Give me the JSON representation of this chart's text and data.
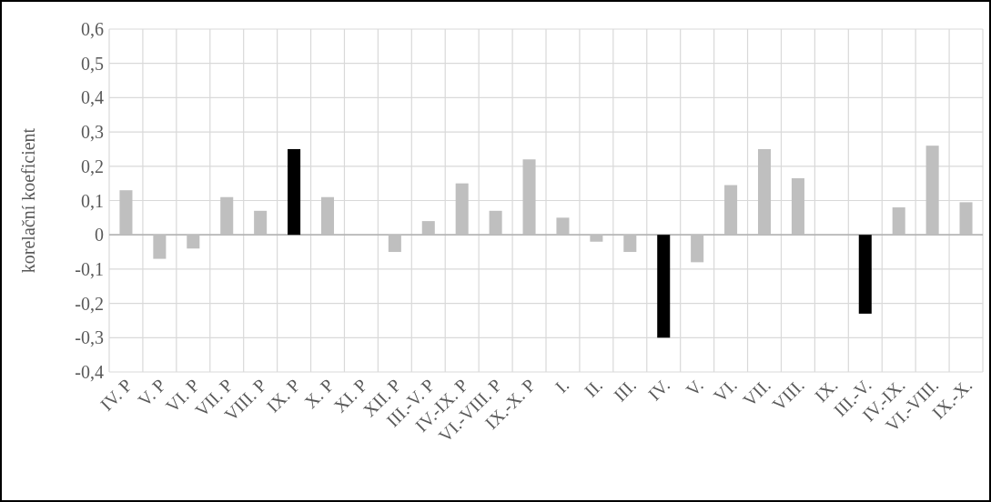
{
  "chart_data": {
    "type": "bar",
    "ylabel": "korelační koeficient",
    "categories": [
      "IV. P",
      "V. P",
      "VI. P",
      "VII. P",
      "VIII. P",
      "IX. P",
      "X. P",
      "XI. P",
      "XII. P",
      "III.-V. P",
      "IV.-IX. P",
      "VI.-VIII. P",
      "IX.-X. P",
      "I.",
      "II.",
      "III.",
      "IV.",
      "V.",
      "VI.",
      "VII.",
      "VIII.",
      "IX.",
      "III.-V.",
      "IV.-IX.",
      "VI.-VIII.",
      "IX.-X."
    ],
    "values": [
      0.13,
      -0.07,
      -0.04,
      0.11,
      0.07,
      0.25,
      0.11,
      0,
      -0.05,
      0.04,
      0.15,
      0.07,
      0.22,
      0.05,
      -0.02,
      -0.05,
      -0.3,
      -0.08,
      0.145,
      0.25,
      0.165,
      0,
      -0.23,
      0.08,
      0.26,
      0.095
    ],
    "colors": [
      "#bfbfbf",
      "#bfbfbf",
      "#bfbfbf",
      "#bfbfbf",
      "#bfbfbf",
      "#000000",
      "#bfbfbf",
      "#bfbfbf",
      "#bfbfbf",
      "#bfbfbf",
      "#bfbfbf",
      "#bfbfbf",
      "#bfbfbf",
      "#bfbfbf",
      "#bfbfbf",
      "#bfbfbf",
      "#000000",
      "#bfbfbf",
      "#bfbfbf",
      "#bfbfbf",
      "#bfbfbf",
      "#bfbfbf",
      "#000000",
      "#bfbfbf",
      "#bfbfbf",
      "#bfbfbf"
    ],
    "ylim": [
      -0.4,
      0.6
    ],
    "yticks": [
      {
        "value": -0.4,
        "label": "-0,4"
      },
      {
        "value": -0.3,
        "label": "-0,3"
      },
      {
        "value": -0.2,
        "label": "-0,2"
      },
      {
        "value": -0.1,
        "label": "-0,1"
      },
      0,
      {
        "value": 0.1,
        "label": "0,1"
      },
      {
        "value": 0.2,
        "label": "0,2"
      },
      {
        "value": 0.3,
        "label": "0,3"
      },
      {
        "value": 0.4,
        "label": "0,4"
      },
      {
        "value": 0.5,
        "label": "0,5"
      },
      {
        "value": 0.6,
        "label": "0,6"
      }
    ],
    "grid": true
  }
}
